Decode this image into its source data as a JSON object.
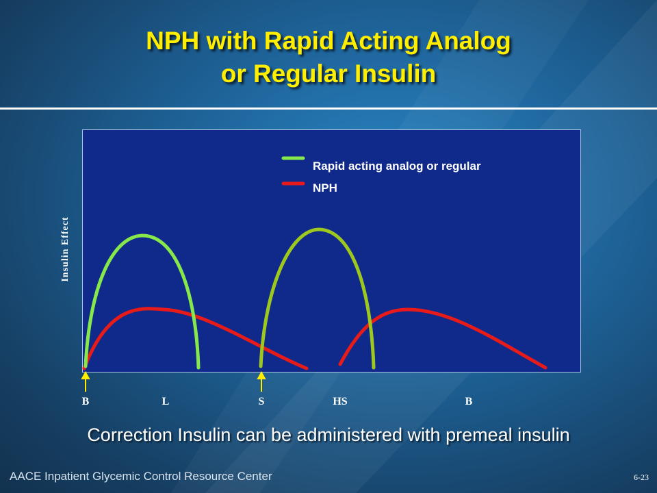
{
  "slide": {
    "title_line1": "NPH with Rapid Acting Analog",
    "title_line2": "or Regular Insulin",
    "footer_note": "Correction Insulin can be administered with premeal insulin",
    "source": "AACE Inpatient Glycemic Control Resource Center",
    "slide_number": "6-23"
  },
  "chart_data": {
    "type": "line",
    "ylabel": "Insulin Effect",
    "x_ticks": [
      "B",
      "L",
      "S",
      "HS",
      "B"
    ],
    "arrow_ticks": [
      "B",
      "S"
    ],
    "legend": [
      {
        "label": "Rapid acting analog or regular",
        "color": "#86e84a"
      },
      {
        "label": "NPH",
        "color": "#e81b1b"
      }
    ],
    "series": [
      {
        "name": "Rapid acting analog or regular",
        "color": "#86e84a",
        "curves": [
          "breakfast",
          "supper"
        ]
      },
      {
        "name": "NPH",
        "color": "#e81b1b",
        "curves": [
          "breakfast",
          "bedtime"
        ]
      }
    ],
    "colors": {
      "rapid_second": "#9ec81e",
      "plot_bg": "#0f2a8a",
      "title": "#ffee00"
    }
  }
}
